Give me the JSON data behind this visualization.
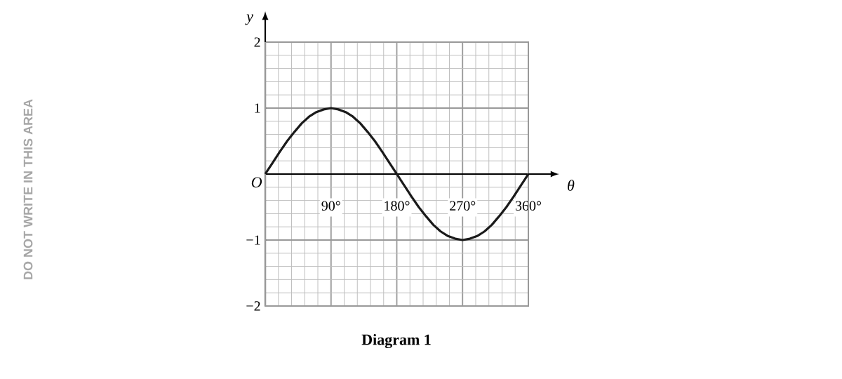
{
  "chart_data": {
    "type": "line",
    "title": "Diagram 1",
    "xlabel": "θ",
    "ylabel": "y",
    "x": [
      0,
      10,
      20,
      30,
      40,
      50,
      60,
      70,
      80,
      90,
      100,
      110,
      120,
      130,
      140,
      150,
      160,
      170,
      180,
      190,
      200,
      210,
      220,
      230,
      240,
      250,
      260,
      270,
      280,
      290,
      300,
      310,
      320,
      330,
      340,
      350,
      360
    ],
    "series": [
      {
        "color": "#1a1a1a",
        "values": [
          0,
          0.17,
          0.34,
          0.5,
          0.64,
          0.77,
          0.87,
          0.94,
          0.98,
          1,
          0.98,
          0.94,
          0.87,
          0.77,
          0.64,
          0.5,
          0.34,
          0.17,
          0,
          -0.17,
          -0.34,
          -0.5,
          -0.64,
          -0.77,
          -0.87,
          -0.94,
          -0.98,
          -1,
          -0.98,
          -0.94,
          -0.87,
          -0.77,
          -0.64,
          -0.5,
          -0.34,
          -0.17,
          0
        ]
      }
    ],
    "xlim": [
      0,
      360
    ],
    "ylim": [
      -2,
      2
    ],
    "xticks": [
      {
        "value": 90,
        "label": "90°"
      },
      {
        "value": 180,
        "label": "180°"
      },
      {
        "value": 270,
        "label": "270°"
      },
      {
        "value": 360,
        "label": "360°"
      }
    ],
    "yticks": [
      {
        "value": -2,
        "label": "−2"
      },
      {
        "value": -1,
        "label": "−1"
      },
      {
        "value": 1,
        "label": "1"
      },
      {
        "value": 2,
        "label": "2"
      }
    ],
    "grid": true,
    "marker": "none",
    "line_style": "solid",
    "annotations": [
      "DO NOT WRITE IN THIS AREA",
      {
        "text": "O",
        "x": 0,
        "y": 0
      }
    ]
  }
}
